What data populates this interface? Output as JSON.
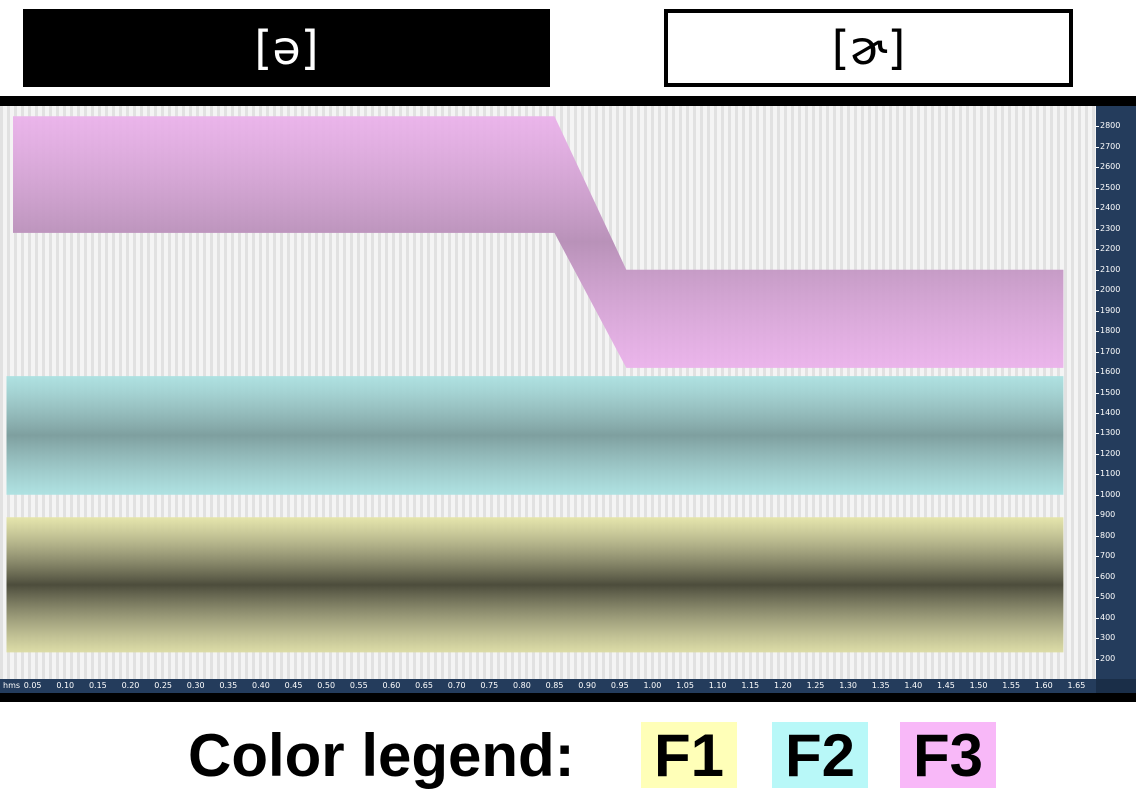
{
  "segments": {
    "first": "[ə]",
    "second": "[ɚ]"
  },
  "legend": {
    "title": "Color legend:",
    "items": [
      {
        "label": "F1",
        "color": "#ffffb8"
      },
      {
        "label": "F2",
        "color": "#b8f8f8"
      },
      {
        "label": "F3",
        "color": "#f8b8f8"
      }
    ]
  },
  "axis": {
    "time_unit": "hms"
  },
  "chart_data": {
    "type": "area",
    "x_unit": "s",
    "y_unit": "Hz",
    "xlim": [
      0.0,
      1.68
    ],
    "ylim": [
      100,
      2900
    ],
    "x_ticks": [
      "0.05",
      "0.10",
      "0.15",
      "0.20",
      "0.25",
      "0.30",
      "0.35",
      "0.40",
      "0.45",
      "0.50",
      "0.55",
      "0.60",
      "0.65",
      "0.70",
      "0.75",
      "0.80",
      "0.85",
      "0.90",
      "0.95",
      "1.00",
      "1.05",
      "1.10",
      "1.15",
      "1.20",
      "1.25",
      "1.30",
      "1.35",
      "1.40",
      "1.45",
      "1.50",
      "1.55",
      "1.60",
      "1.65"
    ],
    "y_ticks": [
      "200",
      "300",
      "400",
      "500",
      "600",
      "700",
      "800",
      "900",
      "1000",
      "1100",
      "1200",
      "1300",
      "1400",
      "1500",
      "1600",
      "1700",
      "1800",
      "1900",
      "2000",
      "2100",
      "2200",
      "2300",
      "2400",
      "2500",
      "2600",
      "2700",
      "2800"
    ],
    "bands": [
      {
        "name": "F1",
        "color": "#ffffb8",
        "points": [
          {
            "x": 0.01,
            "low": 230,
            "high": 890
          },
          {
            "x": 1.63,
            "low": 230,
            "high": 890
          }
        ]
      },
      {
        "name": "F2",
        "color": "#b8f8f8",
        "points": [
          {
            "x": 0.01,
            "low": 1000,
            "high": 1580
          },
          {
            "x": 1.63,
            "low": 1000,
            "high": 1580
          }
        ]
      },
      {
        "name": "F3",
        "color": "#f8b8f8",
        "points": [
          {
            "x": 0.02,
            "low": 2280,
            "high": 2850
          },
          {
            "x": 0.82,
            "low": 2280,
            "high": 2850
          },
          {
            "x": 0.85,
            "low": 2280,
            "high": 2850
          },
          {
            "x": 0.96,
            "low": 1620,
            "high": 2100
          },
          {
            "x": 1.63,
            "low": 1620,
            "high": 2100
          }
        ]
      }
    ]
  }
}
